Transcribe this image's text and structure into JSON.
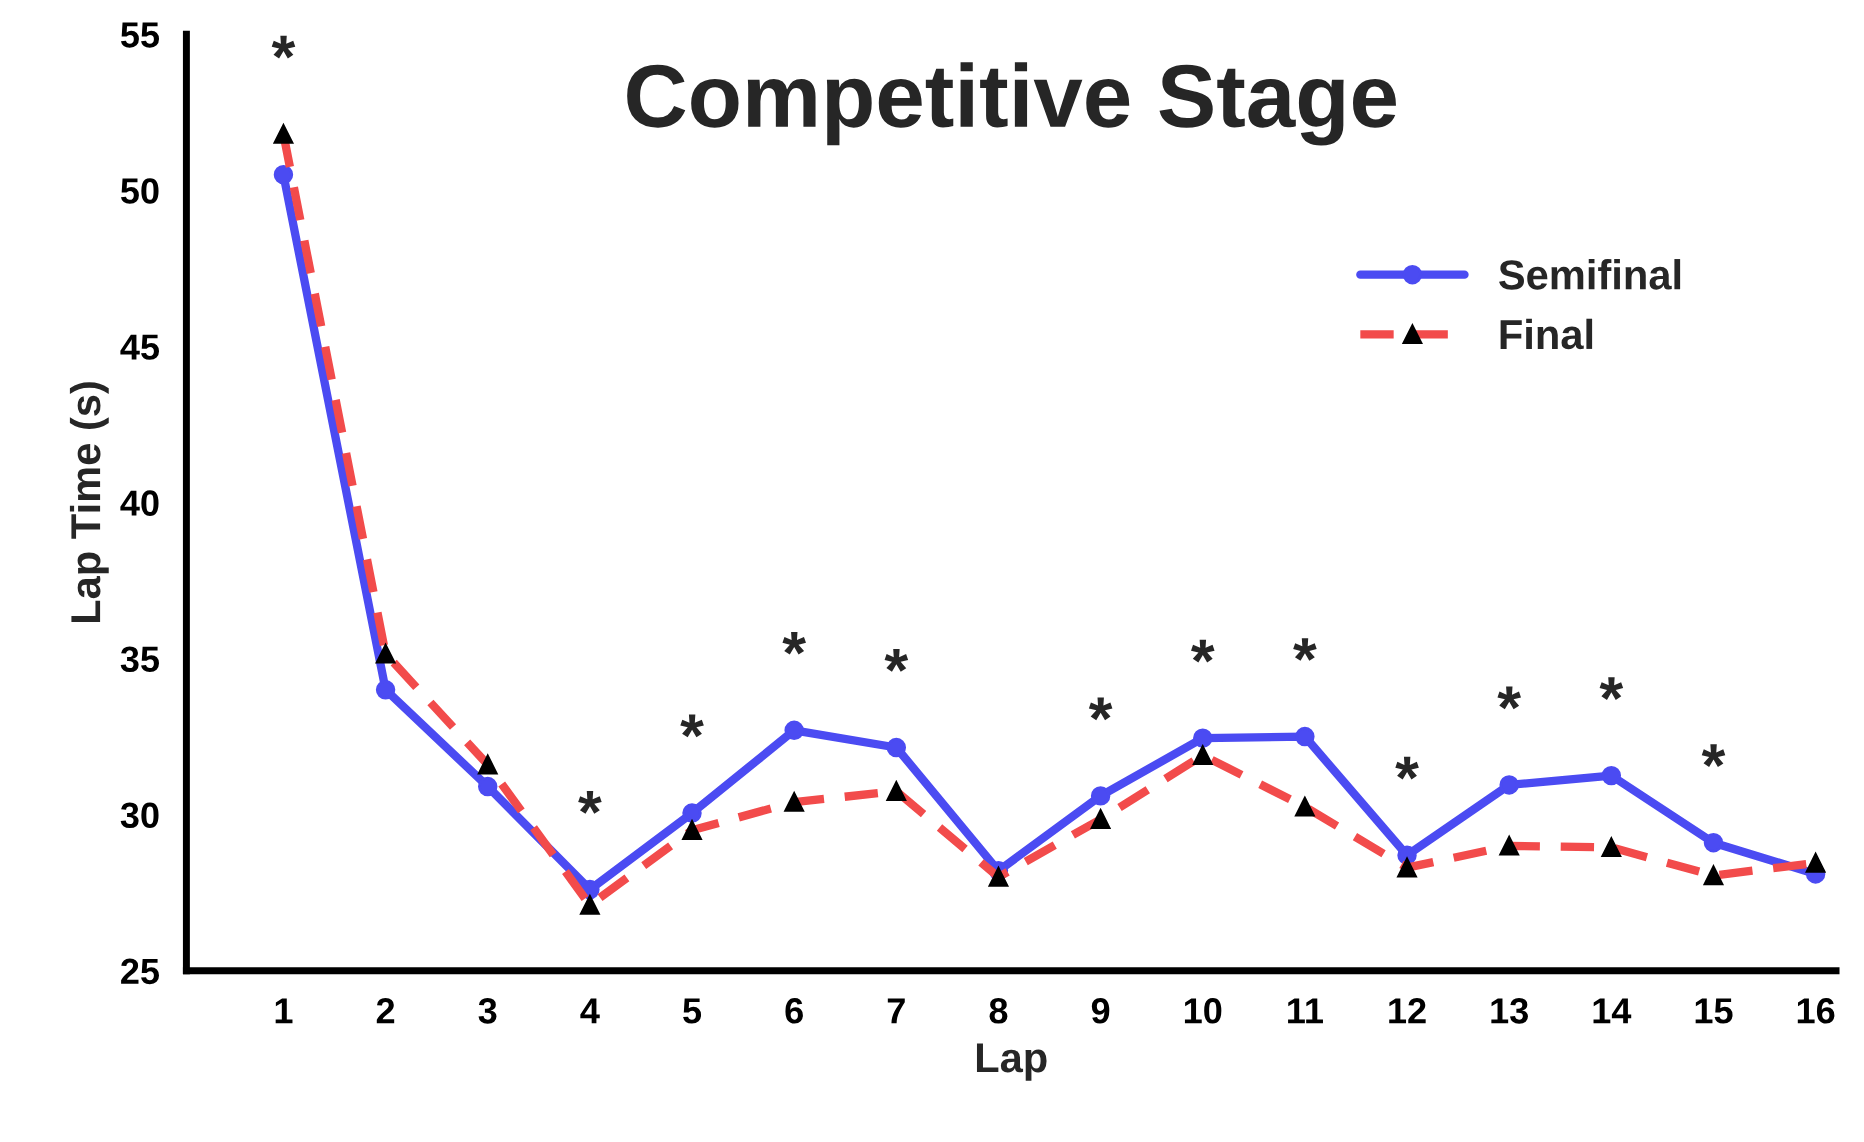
{
  "chart_data": {
    "type": "line",
    "title": "Competitive Stage",
    "xlabel": "Lap",
    "ylabel": "Lap Time (s)",
    "categories": [
      "1",
      "2",
      "3",
      "4",
      "5",
      "6",
      "7",
      "8",
      "9",
      "10",
      "11",
      "12",
      "13",
      "14",
      "15",
      "16"
    ],
    "series": [
      {
        "name": "Semifinal",
        "color": "#4b4bf2",
        "marker": "circle",
        "line_style": "solid",
        "values": [
          50.5,
          34.0,
          30.9,
          27.6,
          30.05,
          32.7,
          32.15,
          28.2,
          30.6,
          32.45,
          32.5,
          28.7,
          30.95,
          31.25,
          29.1,
          28.1
        ]
      },
      {
        "name": "Final",
        "color": "#f24b4b",
        "marker": "triangle",
        "line_style": "dashed",
        "values": [
          51.8,
          35.15,
          31.6,
          27.1,
          29.5,
          30.4,
          30.75,
          28.0,
          29.85,
          31.9,
          30.25,
          28.3,
          29.0,
          28.95,
          28.05,
          28.45
        ]
      }
    ],
    "ylim": [
      25,
      55
    ],
    "yticks": [
      25,
      30,
      35,
      40,
      45,
      50,
      55
    ],
    "grid": false,
    "legend": "top right",
    "annotations": [
      {
        "text": "*",
        "x": "1",
        "y": 51.8
      },
      {
        "text": "*",
        "x": "4",
        "y": 27.6
      },
      {
        "text": "*",
        "x": "5",
        "y": 30.05
      },
      {
        "text": "*",
        "x": "6",
        "y": 32.7
      },
      {
        "text": "*",
        "x": "7",
        "y": 32.15
      },
      {
        "text": "*",
        "x": "9",
        "y": 30.6
      },
      {
        "text": "*",
        "x": "10",
        "y": 32.45
      },
      {
        "text": "*",
        "x": "11",
        "y": 32.5
      },
      {
        "text": "*",
        "x": "12",
        "y": 28.7
      },
      {
        "text": "*",
        "x": "13",
        "y": 30.95
      },
      {
        "text": "*",
        "x": "14",
        "y": 31.25
      },
      {
        "text": "*",
        "x": "15",
        "y": 29.1
      }
    ]
  }
}
